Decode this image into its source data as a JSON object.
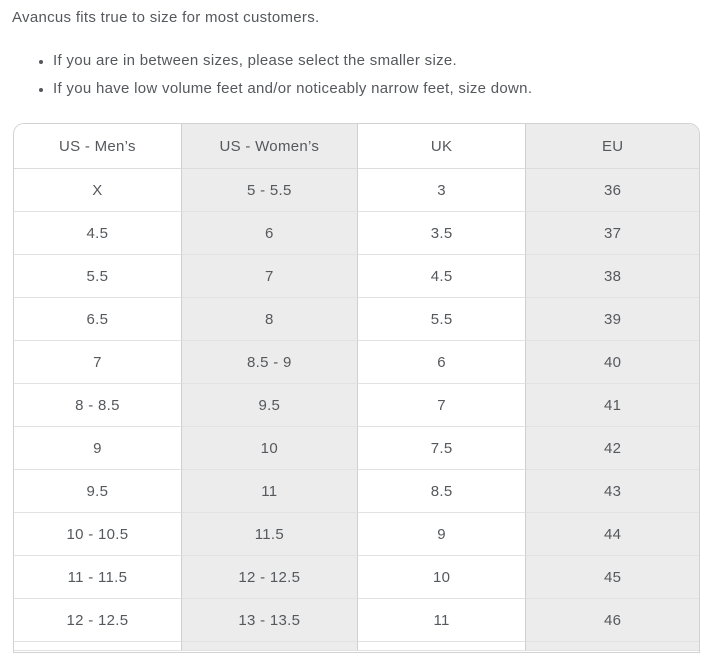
{
  "intro": {
    "title": "Avancus fits true to size for most customers.",
    "bullets": [
      "If you are in between sizes, please select the smaller size.",
      "If you have low volume feet and/or noticeably narrow feet, size down."
    ]
  },
  "table": {
    "columns": [
      "US - Men’s",
      "US - Women’s",
      "UK",
      "EU"
    ],
    "column_keys": [
      "us-mens",
      "us-womens",
      "uk",
      "eu"
    ],
    "shaded_columns": [
      1,
      3
    ],
    "rows": [
      [
        "X",
        "5 - 5.5",
        "3",
        "36"
      ],
      [
        "4.5",
        "6",
        "3.5",
        "37"
      ],
      [
        "5.5",
        "7",
        "4.5",
        "38"
      ],
      [
        "6.5",
        "8",
        "5.5",
        "39"
      ],
      [
        "7",
        "8.5 - 9",
        "6",
        "40"
      ],
      [
        "8 - 8.5",
        "9.5",
        "7",
        "41"
      ],
      [
        "9",
        "10",
        "7.5",
        "42"
      ],
      [
        "9.5",
        "11",
        "8.5",
        "43"
      ],
      [
        "10 - 10.5",
        "11.5",
        "9",
        "44"
      ],
      [
        "11 - 11.5",
        "12 - 12.5",
        "10",
        "45"
      ],
      [
        "12 - 12.5",
        "13 - 13.5",
        "11",
        "46"
      ]
    ],
    "partial_row_visible": true
  },
  "colors": {
    "shaded_cell": "#ececec",
    "outer_border": "#d2d2d2",
    "vertical_border": "#cfcfcf",
    "horizontal_border": "#e2e2e2",
    "text": "#55585c",
    "background": "#ffffff"
  }
}
